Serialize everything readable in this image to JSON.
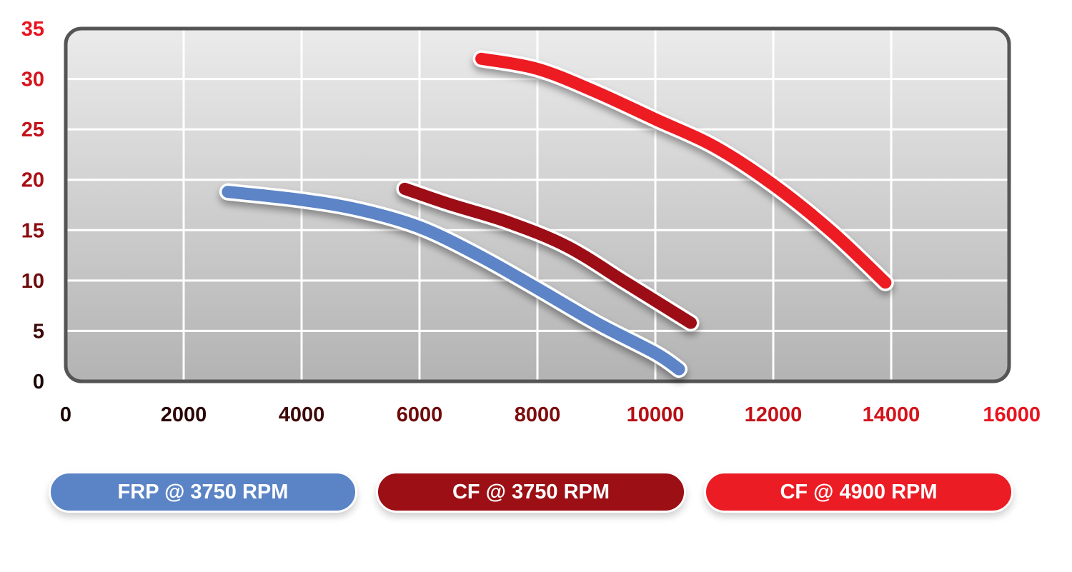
{
  "chart_data": {
    "type": "line",
    "title": "",
    "xlabel": "",
    "ylabel": "",
    "xlim": [
      0,
      16000
    ],
    "ylim": [
      0,
      35
    ],
    "grid": true,
    "legend_position": "bottom",
    "x_ticks": [
      "0",
      "2000",
      "4000",
      "6000",
      "8000",
      "10000",
      "12000",
      "14000",
      "16000"
    ],
    "y_ticks": [
      "0",
      "5",
      "10",
      "15",
      "20",
      "25",
      "30",
      "35"
    ],
    "x_tick_colors": [
      "#1a0505",
      "#2a0606",
      "#3d0808",
      "#6e0b0b",
      "#7d0d0d",
      "#b50f14",
      "#c4121a",
      "#d5141c",
      "#e8141f"
    ],
    "y_tick_colors": [
      "#1a0505",
      "#3d0808",
      "#6e0b0b",
      "#8a0c10",
      "#a80f14",
      "#c4121a",
      "#d5141c",
      "#e8141f"
    ],
    "series": [
      {
        "name": "FRP @ 3750 RPM",
        "color": "#5b84c6",
        "x": [
          2750,
          4000,
          5000,
          6000,
          7000,
          8000,
          9000,
          10000,
          10400
        ],
        "y": [
          18.8,
          18.0,
          17.0,
          15.3,
          12.5,
          9.2,
          5.8,
          2.8,
          1.2
        ]
      },
      {
        "name": "CF @ 3750 RPM",
        "color": "#9c0f14",
        "x": [
          5750,
          6500,
          7500,
          8500,
          9500,
          10600
        ],
        "y": [
          19.1,
          17.6,
          15.8,
          13.4,
          9.8,
          5.8
        ]
      },
      {
        "name": "CF @ 4900 RPM",
        "color": "#ec1c24",
        "x": [
          7050,
          8000,
          9000,
          10000,
          11000,
          12000,
          13000,
          13900
        ],
        "y": [
          32.0,
          31.0,
          28.7,
          26.0,
          23.3,
          19.5,
          14.8,
          9.8
        ]
      }
    ]
  }
}
